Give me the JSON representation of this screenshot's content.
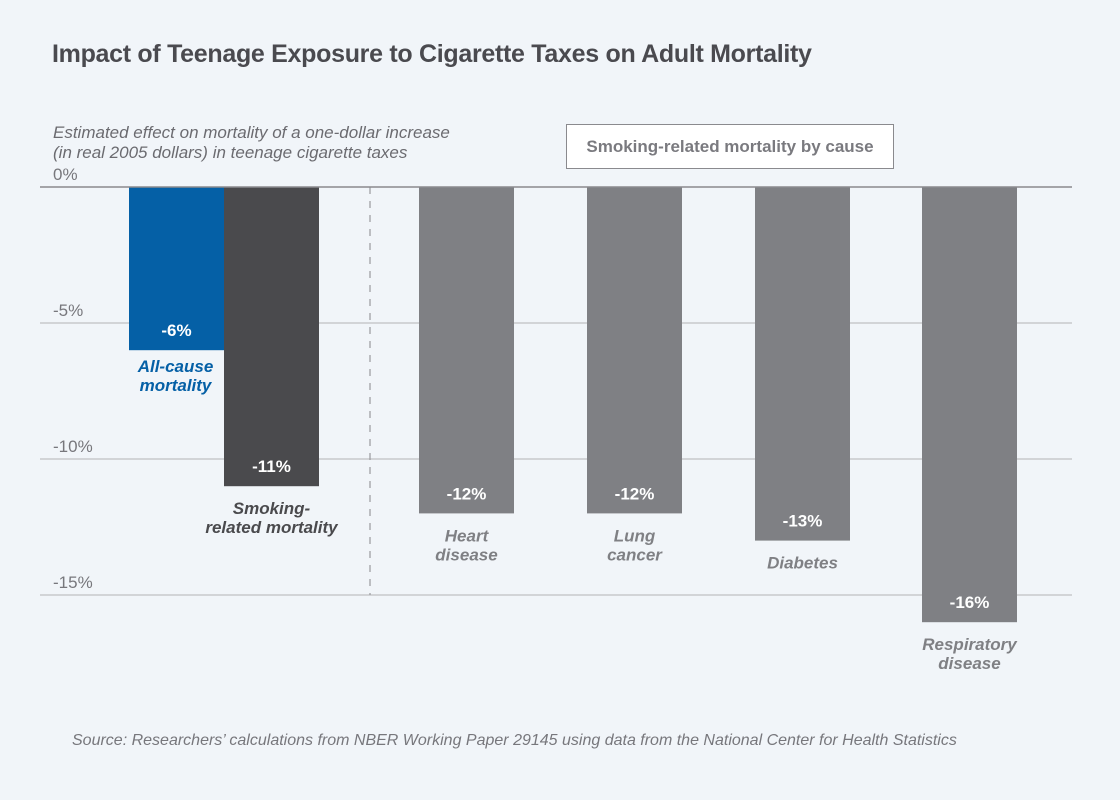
{
  "title": "Impact of Teenage Exposure to Cigarette Taxes on Adult Mortality",
  "subtitle_lines": [
    "Estimated effect on mortality of a one-dollar increase",
    "(in real 2005 dollars) in teenage cigarette taxes"
  ],
  "section_label": "Smoking-related mortality by cause",
  "source": "Source: Researchers’ calculations from NBER Working Paper 29145 using data from the National Center for Health Statistics",
  "colors": {
    "background": "#f1f5f9",
    "all_cause": "#0560a6",
    "smoking_related": "#4a4a4d",
    "by_cause": "#7f8084",
    "gridline": "#c7c9cc",
    "zero_line": "#8a8a8e"
  },
  "chart_data": {
    "type": "bar",
    "title": "Impact of Teenage Exposure to Cigarette Taxes on Adult Mortality",
    "ylabel": "Estimated effect on mortality of a one-dollar increase (in real 2005 dollars) in teenage cigarette taxes",
    "xlabel": "",
    "ylim": [
      -16.5,
      0
    ],
    "yticks": [
      0,
      -5,
      -10,
      -15
    ],
    "ytick_labels": [
      "0%",
      "-5%",
      "-10%",
      "-15%"
    ],
    "grid": true,
    "categories": [
      "All-cause mortality",
      "Smoking-related mortality",
      "Heart disease",
      "Lung cancer",
      "Diabetes",
      "Respiratory disease"
    ],
    "category_label_lines": [
      [
        "All-cause",
        "mortality"
      ],
      [
        "Smoking-",
        "related mortality"
      ],
      [
        "Heart",
        "disease"
      ],
      [
        "Lung",
        "cancer"
      ],
      [
        "Diabetes"
      ],
      [
        "Respiratory",
        "disease"
      ]
    ],
    "values": [
      -6,
      -11,
      -12,
      -12,
      -13,
      -16
    ],
    "value_labels": [
      "-6%",
      "-11%",
      "-12%",
      "-12%",
      "-13%",
      "-16%"
    ],
    "groups": [
      "all_cause",
      "smoking_related",
      "by_cause",
      "by_cause",
      "by_cause",
      "by_cause"
    ],
    "group_annotation": "Smoking-related mortality by cause",
    "separator": "dashed vertical line between Smoking-related mortality and Heart disease"
  }
}
